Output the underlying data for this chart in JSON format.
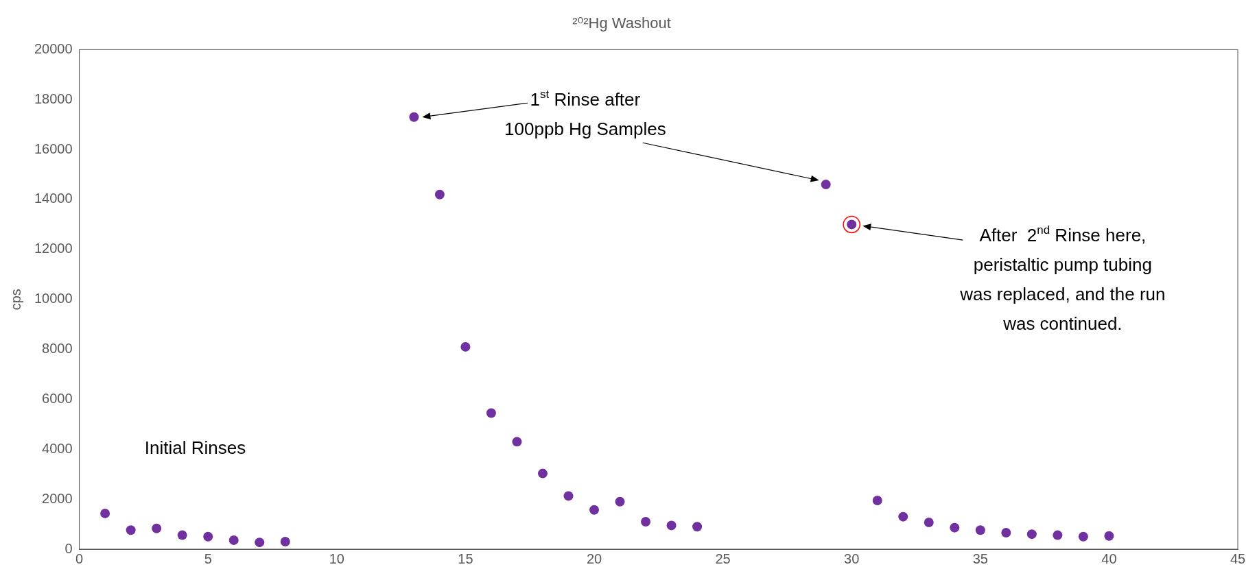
{
  "chart_data": {
    "type": "scatter",
    "title": "²⁰²Hg Washout",
    "ylabel": "cps",
    "x": [
      1,
      2,
      3,
      4,
      5,
      6,
      7,
      8,
      13,
      14,
      15,
      16,
      17,
      18,
      19,
      20,
      21,
      22,
      23,
      24,
      29,
      30,
      31,
      32,
      33,
      34,
      35,
      36,
      37,
      38,
      39,
      40
    ],
    "series": [
      {
        "color": "#7030a0",
        "values": [
          1430,
          760,
          830,
          560,
          500,
          360,
          270,
          300,
          17300,
          14200,
          8100,
          5450,
          4300,
          3030,
          2130,
          1570,
          1900,
          1100,
          950,
          900,
          14600,
          13000,
          1950,
          1300,
          1070,
          860,
          760,
          660,
          600,
          560,
          500,
          530
        ]
      }
    ],
    "xlim": [
      0,
      45
    ],
    "xticks": [
      0,
      5,
      10,
      15,
      20,
      25,
      30,
      35,
      40,
      45
    ],
    "ylim": [
      0,
      20000
    ],
    "yticks": [
      0,
      2000,
      4000,
      6000,
      8000,
      10000,
      12000,
      14000,
      16000,
      18000,
      20000
    ],
    "grid": false,
    "legend": false,
    "marker": "circle",
    "annotations": [
      "Initial Rinses",
      "1$^{st}$ Rinse after 100ppb Hg Samples",
      "After  2$^{nd}$ Rinse here, peristaltic pump tubing was replaced, and the run was continued."
    ]
  }
}
